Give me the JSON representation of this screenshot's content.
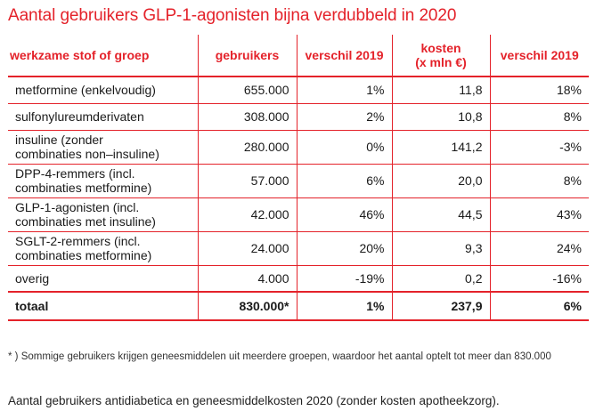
{
  "title": "Aantal gebruikers GLP-1-agonisten bijna verdubbeld in 2020",
  "table": {
    "headers": [
      {
        "line1": "werkzame stof of groep",
        "line2": ""
      },
      {
        "line1": "gebruikers",
        "line2": ""
      },
      {
        "line1": "verschil 2019",
        "line2": ""
      },
      {
        "line1": "kosten",
        "line2": "(x mln €)"
      },
      {
        "line1": "verschil 2019",
        "line2": ""
      }
    ],
    "rows": [
      {
        "label_1": "metformine (enkelvoudig)",
        "label_2": "",
        "gebruikers": "655.000",
        "verschil_gebruikers": "1%",
        "kosten": "11,8",
        "verschil_kosten": "18%"
      },
      {
        "label_1": "sulfonylureumderivaten",
        "label_2": "",
        "gebruikers": "308.000",
        "verschil_gebruikers": "2%",
        "kosten": "10,8",
        "verschil_kosten": "8%"
      },
      {
        "label_1": "insuline (zonder",
        "label_2": "combinaties non–insuline)",
        "gebruikers": "280.000",
        "verschil_gebruikers": "0%",
        "kosten": "141,2",
        "verschil_kosten": "-3%"
      },
      {
        "label_1": "DPP-4-remmers (incl.",
        "label_2": "combinaties metformine)",
        "gebruikers": "57.000",
        "verschil_gebruikers": "6%",
        "kosten": "20,0",
        "verschil_kosten": "8%"
      },
      {
        "label_1": "GLP-1-agonisten (incl.",
        "label_2": "combinaties met insuline)",
        "gebruikers": "42.000",
        "verschil_gebruikers": "46%",
        "kosten": "44,5",
        "verschil_kosten": "43%"
      },
      {
        "label_1": "SGLT-2-remmers (incl.",
        "label_2": "combinaties metformine)",
        "gebruikers": "24.000",
        "verschil_gebruikers": "20%",
        "kosten": "9,3",
        "verschil_kosten": "24%"
      },
      {
        "label_1": "overig",
        "label_2": "",
        "gebruikers": "4.000",
        "verschil_gebruikers": "-19%",
        "kosten": "0,2",
        "verschil_kosten": "-16%"
      }
    ],
    "total": {
      "label": "totaal",
      "gebruikers": "830.000*",
      "verschil_gebruikers": "1%",
      "kosten": "237,9",
      "verschil_kosten": "6%"
    }
  },
  "footnote": "* ) Sommige gebruikers krijgen geneesmiddelen uit meerdere groepen, waardoor het aantal optelt tot meer dan 830.000",
  "caption": "Aantal gebruikers antidiabetica en geneesmiddelkosten 2020 (zonder kosten apotheekzorg).",
  "colors": {
    "accent": "#e4222a",
    "text": "#1a1a1a"
  }
}
